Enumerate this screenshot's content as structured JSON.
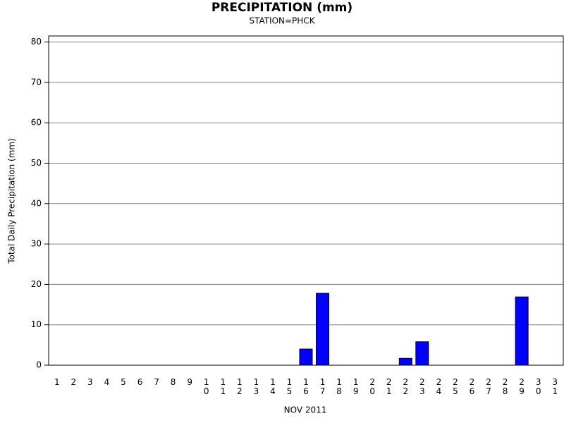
{
  "chart_data": {
    "type": "bar",
    "title": "PRECIPITATION (mm)",
    "subtitle": "STATION=PHCK",
    "x_label": "NOV 2011",
    "y_label": "Total Daily Precipitation (mm)",
    "categories": [
      "1",
      "2",
      "3",
      "4",
      "5",
      "6",
      "7",
      "8",
      "9",
      "10",
      "11",
      "12",
      "13",
      "14",
      "15",
      "16",
      "17",
      "18",
      "19",
      "20",
      "21",
      "22",
      "23",
      "24",
      "25",
      "26",
      "27",
      "28",
      "29",
      "30",
      "31"
    ],
    "values": [
      0,
      0,
      0,
      0,
      0,
      0,
      0,
      0,
      0,
      0,
      0,
      0,
      0,
      0,
      0,
      4.0,
      17.8,
      0,
      0,
      0,
      0,
      1.7,
      5.8,
      0,
      0,
      0,
      0,
      0,
      16.9,
      0,
      0
    ],
    "color": "#0000ff",
    "ylim": [
      0,
      81.5
    ],
    "yticks": [
      0,
      10,
      20,
      30,
      40,
      50,
      60,
      70,
      80
    ],
    "grid": true
  }
}
